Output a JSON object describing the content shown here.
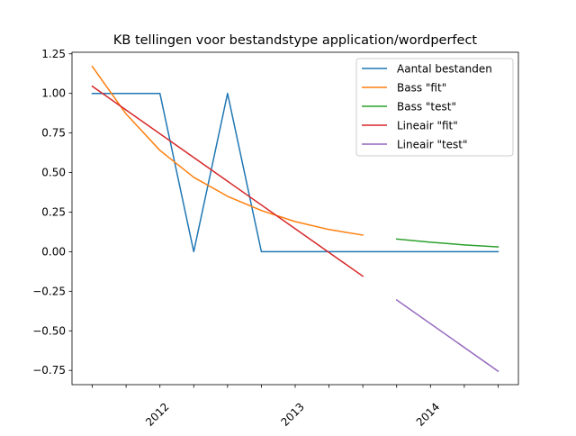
{
  "chart_data": {
    "type": "line",
    "title": "KB tellingen voor bestandstype application/wordperfect",
    "xlabel": "",
    "ylabel": "",
    "ylim": [
      -0.84,
      1.26
    ],
    "xlim": [
      -0.6,
      12.6
    ],
    "yticks": [
      -0.75,
      -0.5,
      -0.25,
      0.0,
      0.25,
      0.5,
      0.75,
      1.0,
      1.25
    ],
    "ytick_labels": [
      "−0.75",
      "−0.50",
      "−0.25",
      "0.00",
      "0.25",
      "0.50",
      "0.75",
      "1.00",
      "1.25"
    ],
    "xticks": [
      0,
      1,
      2,
      3,
      4,
      5,
      6,
      7,
      8,
      9,
      10,
      11,
      12
    ],
    "xtick_labels": [
      {
        "x": 2,
        "label": "2012"
      },
      {
        "x": 6,
        "label": "2013"
      },
      {
        "x": 10,
        "label": "2014"
      }
    ],
    "grid": false,
    "legend_position": "top-right",
    "series": [
      {
        "name": "Aantal bestanden",
        "color": "#1f77b4",
        "x": [
          0,
          1,
          2,
          3,
          4,
          5,
          6,
          7,
          8,
          9,
          10,
          11,
          12
        ],
        "y": [
          1,
          1,
          1,
          0,
          1,
          0,
          0,
          0,
          0,
          0,
          0,
          0,
          0
        ]
      },
      {
        "name": "Bass \"fit\"",
        "color": "#ff7f0e",
        "x": [
          0,
          1,
          2,
          3,
          4,
          5,
          6,
          7,
          8
        ],
        "y": [
          1.17,
          0.87,
          0.64,
          0.47,
          0.35,
          0.26,
          0.19,
          0.14,
          0.105
        ]
      },
      {
        "name": "Bass \"test\"",
        "color": "#2ca02c",
        "x": [
          9,
          10,
          11,
          12
        ],
        "y": [
          0.08,
          0.06,
          0.043,
          0.03
        ]
      },
      {
        "name": "Lineair \"fit\"",
        "color": "#d62728",
        "x": [
          0,
          8
        ],
        "y": [
          1.045,
          -0.155
        ]
      },
      {
        "name": "Lineair \"test\"",
        "color": "#9467bd",
        "x": [
          9,
          12
        ],
        "y": [
          -0.305,
          -0.755
        ]
      }
    ]
  }
}
